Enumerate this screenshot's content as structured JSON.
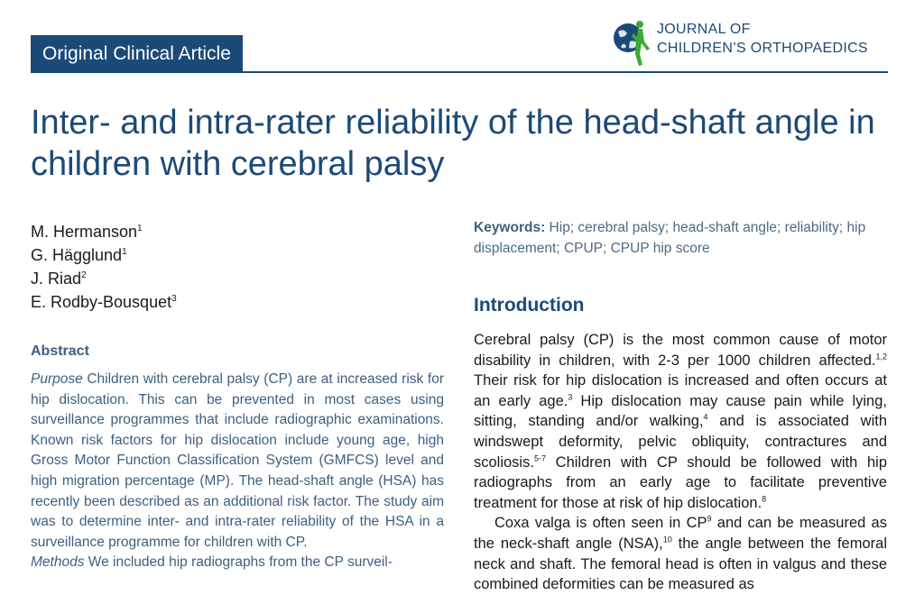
{
  "header": {
    "badge": "Original Clinical Article",
    "journal_line1": "JOURNAL OF",
    "journal_line2": "CHILDREN’S ORTHOPAEDICS"
  },
  "title": "Inter- and intra-rater reliability of the head-shaft angle in children with cerebral palsy",
  "authors": [
    {
      "name": "M. Hermanson",
      "aff": "1"
    },
    {
      "name": "G. Hägglund",
      "aff": "1"
    },
    {
      "name": "J. Riad",
      "aff": "2"
    },
    {
      "name": "E. Rodby-Bousquet",
      "aff": "3"
    }
  ],
  "abstract": {
    "heading": "Abstract",
    "purpose_label": "Purpose",
    "purpose_text": " Children with cerebral palsy (CP) are at increased risk for hip dislocation. This can be prevented in most cases using surveillance programmes that include radiographic examinations. Known risk factors for hip dislocation include young age, high Gross Motor Function Classification System (GMFCS) level and high migration percentage (MP). The head-shaft angle (HSA) has recently been described as an additional risk factor. The study aim was to determine inter- and intra-rater reliability of the HSA in a surveillance programme for children with CP.",
    "methods_label": "Methods",
    "methods_text": " We included hip radiographs from the CP surveil-"
  },
  "keywords": {
    "label": "Keywords:",
    "text": " Hip; cerebral palsy; head-shaft angle; reliability; hip displacement; CPUP; CPUP hip score"
  },
  "introduction": {
    "heading": "Introduction",
    "p1": [
      {
        "t": "Cerebral palsy (CP) is the most common cause of motor disability in children, with 2-3 per 1000 children affected."
      },
      {
        "s": "1,2"
      },
      {
        "t": " Their risk for hip dislocation is increased and often occurs at an early age."
      },
      {
        "s": "3"
      },
      {
        "t": " Hip dislocation may cause pain while lying, sitting, standing and/or walking,"
      },
      {
        "s": "4"
      },
      {
        "t": " and is associated with windswept deformity, pelvic obliquity, contractures and scoliosis."
      },
      {
        "s": "5-7"
      },
      {
        "t": " Children with CP should be followed with hip radiographs from an early age to facilitate preventive treatment for those at risk of hip dislocation."
      },
      {
        "s": "8"
      }
    ],
    "p2": [
      {
        "t": "Coxa valga is often seen in CP"
      },
      {
        "s": "9"
      },
      {
        "t": " and can be measured as the neck-shaft angle (NSA),"
      },
      {
        "s": "10"
      },
      {
        "t": " the angle between the femoral neck and shaft. The femoral head is often in valgus and these combined deformities can be measured as"
      }
    ]
  },
  "colors": {
    "brand": "#1c4a77",
    "abstract_text": "#3d5f80",
    "logo_green": "#3aaa35"
  },
  "icons": {
    "logo": "globe-child-logo-icon"
  }
}
